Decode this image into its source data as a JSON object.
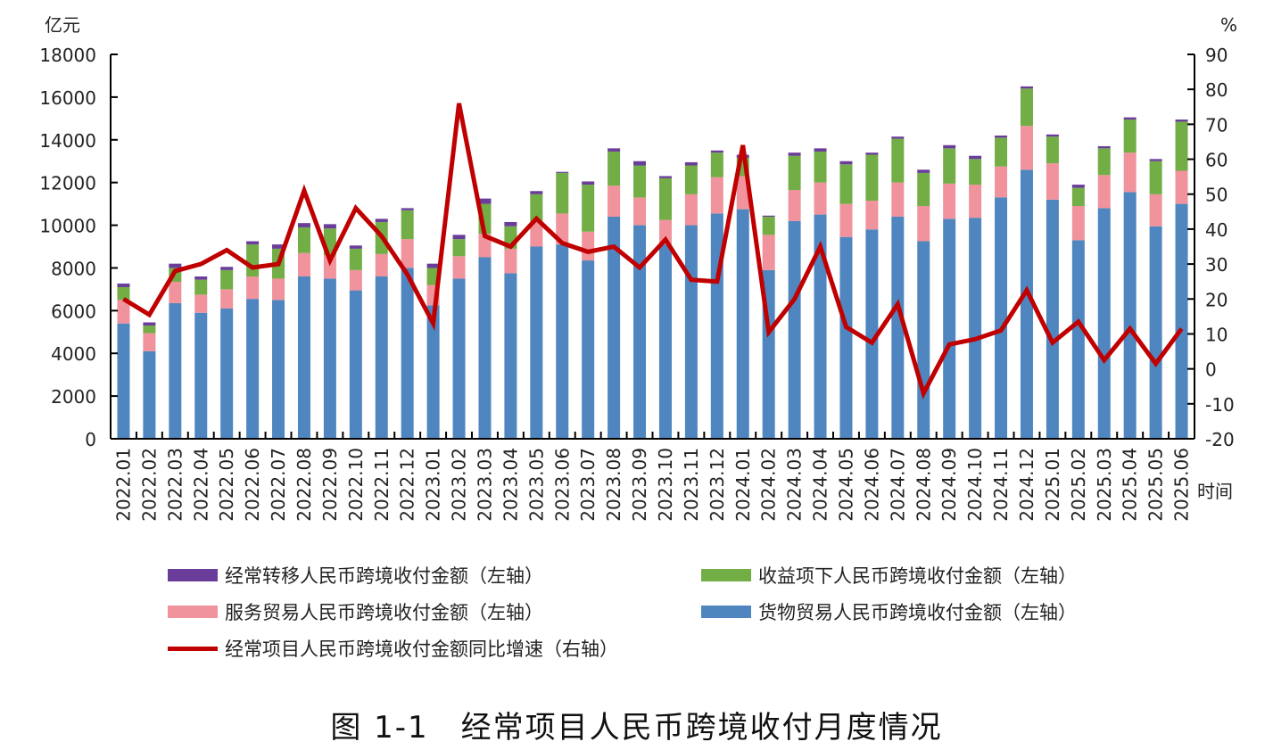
{
  "chart_data": {
    "type": "bar",
    "stacked": true,
    "title": "图 1-1　经常项目人民币跨境收付月度情况",
    "ylabel_left": "亿元",
    "ylabel_right": "%",
    "xlabel": "时间",
    "ylim_left": [
      0,
      18000
    ],
    "yticks_left": [
      0,
      2000,
      4000,
      6000,
      8000,
      10000,
      12000,
      14000,
      16000,
      18000
    ],
    "ylim_right": [
      -20,
      90
    ],
    "yticks_right": [
      -20,
      -10,
      0,
      10,
      20,
      30,
      40,
      50,
      60,
      70,
      80,
      90
    ],
    "grid": false,
    "legend_position": "bottom",
    "categories": [
      "2022.01",
      "2022.02",
      "2022.03",
      "2022.04",
      "2022.05",
      "2022.06",
      "2022.07",
      "2022.08",
      "2022.09",
      "2022.10",
      "2022.11",
      "2022.12",
      "2023.01",
      "2023.02",
      "2023.03",
      "2023.04",
      "2023.05",
      "2023.06",
      "2023.07",
      "2023.08",
      "2023.09",
      "2023.10",
      "2023.11",
      "2023.12",
      "2024.01",
      "2024.02",
      "2024.03",
      "2024.04",
      "2024.05",
      "2024.06",
      "2024.07",
      "2024.08",
      "2024.09",
      "2024.10",
      "2024.11",
      "2024.12",
      "2025.01",
      "2025.02",
      "2025.03",
      "2025.04",
      "2025.05",
      "2025.06"
    ],
    "series": [
      {
        "name": "货物贸易人民币跨境收付金额（左轴）",
        "type": "bar",
        "axis": "left",
        "color": "#4f86c0",
        "values": [
          5400,
          4100,
          6350,
          5900,
          6100,
          6550,
          6500,
          7600,
          7500,
          6950,
          7600,
          8000,
          6250,
          7500,
          8500,
          7750,
          9000,
          9100,
          8350,
          10400,
          10000,
          9100,
          10000,
          10550,
          10750,
          7900,
          10200,
          10500,
          9450,
          9800,
          10400,
          9250,
          10300,
          10350,
          11300,
          12600,
          11200,
          9300,
          10800,
          11550,
          9950,
          11000
        ]
      },
      {
        "name": "服务贸易人民币跨境收付金额（左轴）",
        "type": "bar",
        "axis": "left",
        "color": "#f0939c",
        "values": [
          1100,
          850,
          1000,
          850,
          900,
          1050,
          1000,
          1100,
          1100,
          950,
          1050,
          1350,
          950,
          1050,
          1100,
          1150,
          1200,
          1450,
          1350,
          1450,
          1300,
          1150,
          1450,
          1700,
          1550,
          1650,
          1450,
          1500,
          1550,
          1350,
          1600,
          1650,
          1650,
          1550,
          1450,
          2050,
          1700,
          1600,
          1550,
          1850,
          1500,
          1550
        ]
      },
      {
        "name": "收益项下人民币跨境收付金额（左轴）",
        "type": "bar",
        "axis": "left",
        "color": "#72ad45",
        "values": [
          600,
          350,
          650,
          700,
          900,
          1500,
          1400,
          1200,
          1250,
          1000,
          1500,
          1350,
          800,
          800,
          1400,
          1050,
          1250,
          1900,
          2200,
          1600,
          1500,
          1950,
          1350,
          1150,
          850,
          850,
          1600,
          1450,
          1850,
          2150,
          2050,
          1550,
          1650,
          1200,
          1350,
          1750,
          1250,
          850,
          1250,
          1550,
          1550,
          2300
        ]
      },
      {
        "name": "经常转移人民币跨境收付金额（左轴）",
        "type": "bar",
        "axis": "left",
        "color": "#6a3d9a",
        "values": [
          170,
          150,
          200,
          150,
          150,
          150,
          200,
          200,
          200,
          150,
          150,
          100,
          200,
          200,
          250,
          200,
          150,
          50,
          150,
          150,
          200,
          100,
          150,
          100,
          150,
          50,
          150,
          150,
          150,
          100,
          100,
          150,
          150,
          150,
          100,
          100,
          100,
          150,
          100,
          100,
          100,
          100
        ]
      },
      {
        "name": "经常项目人民币跨境收付金额同比增速（右轴）",
        "type": "line",
        "axis": "right",
        "color": "#c00000",
        "values": [
          20,
          15.5,
          28,
          30,
          34,
          29,
          30,
          51,
          31,
          46,
          38,
          27,
          13,
          76,
          38,
          35,
          43,
          36,
          33.5,
          35,
          29,
          37,
          25.5,
          25,
          64,
          10.5,
          20,
          35,
          12,
          7.5,
          18.5,
          -7,
          7,
          8.5,
          11,
          22.5,
          7.5,
          13.5,
          2.5,
          11.5,
          1.5,
          11.5
        ]
      }
    ],
    "legend_order": [
      3,
      2,
      1,
      0,
      4
    ]
  }
}
